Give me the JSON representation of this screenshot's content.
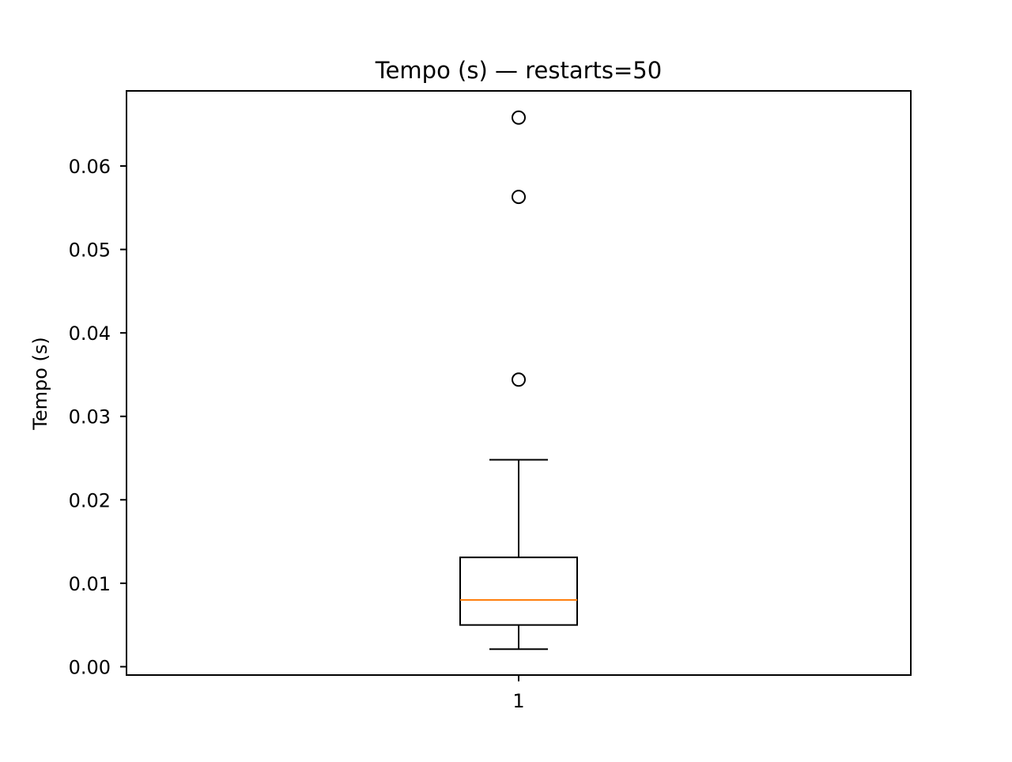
{
  "chart_data": {
    "type": "boxplot",
    "title": "Tempo (s) — restarts=50",
    "xlabel": "",
    "ylabel": "Tempo (s)",
    "categories": [
      "1"
    ],
    "ylim": [
      -0.001,
      0.069
    ],
    "yticks": [
      {
        "value": 0.0,
        "label": "0.00"
      },
      {
        "value": 0.01,
        "label": "0.01"
      },
      {
        "value": 0.02,
        "label": "0.02"
      },
      {
        "value": 0.03,
        "label": "0.03"
      },
      {
        "value": 0.04,
        "label": "0.04"
      },
      {
        "value": 0.05,
        "label": "0.05"
      },
      {
        "value": 0.06,
        "label": "0.06"
      }
    ],
    "boxes": [
      {
        "category": "1",
        "whisker_low": 0.0021,
        "q1": 0.005,
        "median": 0.008,
        "q3": 0.0131,
        "whisker_high": 0.0248,
        "outliers": [
          0.0344,
          0.0563,
          0.0658
        ]
      }
    ],
    "grid": false,
    "legend": "none",
    "colors": {
      "box": "#000000",
      "median": "#ff7f0e",
      "outlier": "#000000"
    }
  }
}
